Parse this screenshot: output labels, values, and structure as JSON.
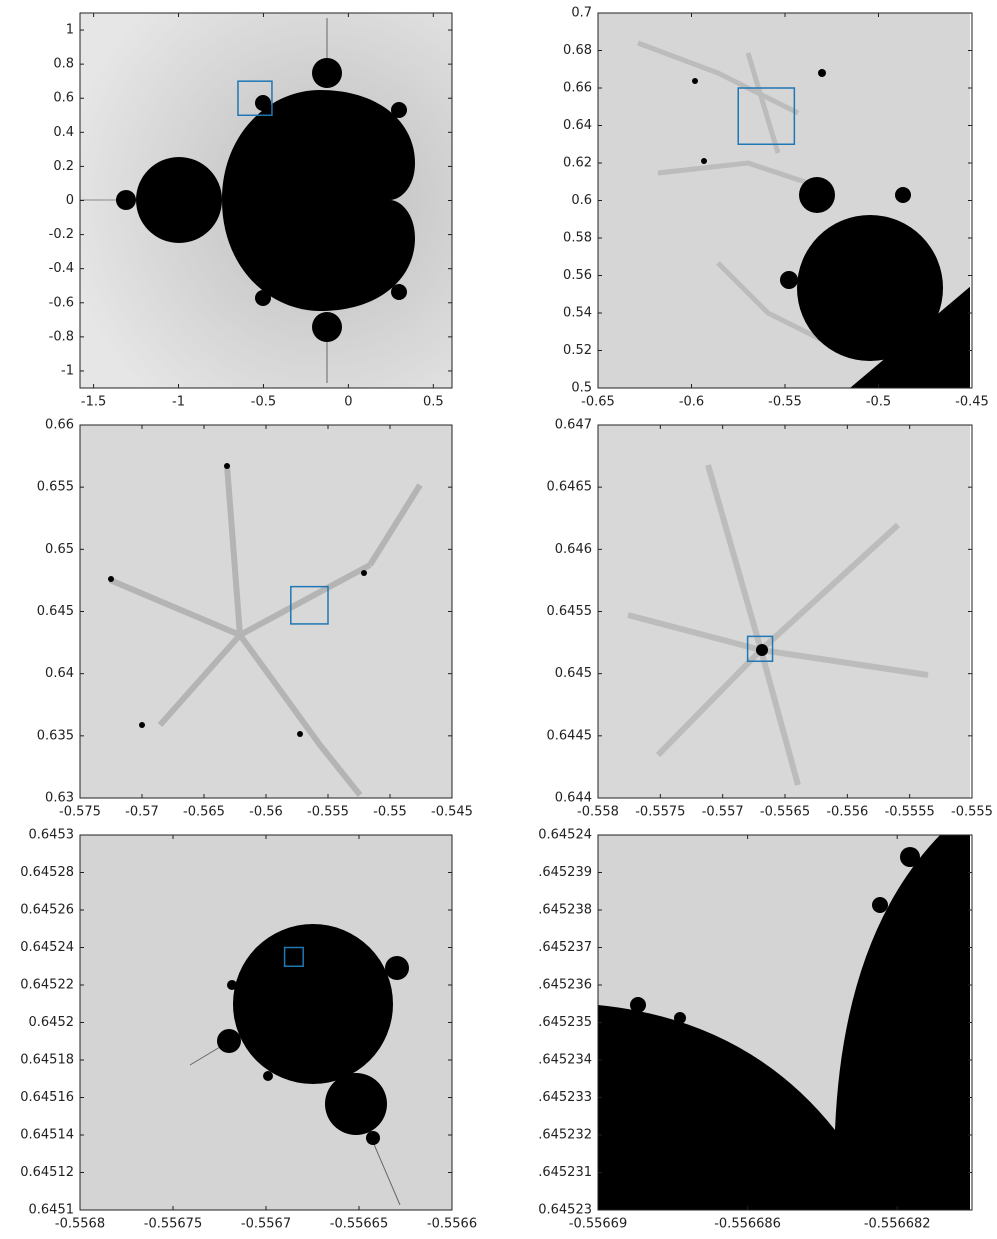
{
  "chart_data": [
    {
      "type": "image",
      "xlim": [
        -1.58,
        0.61
      ],
      "ylim": [
        -1.1,
        1.1
      ],
      "xticks": [
        -1.5,
        -1,
        -0.5,
        0,
        0.5
      ],
      "yticks": [
        -1,
        -0.8,
        -0.6,
        -0.4,
        -0.2,
        0,
        0.2,
        0.4,
        0.6,
        0.8,
        1
      ]
    },
    {
      "type": "image",
      "xlim": [
        -0.65,
        -0.45
      ],
      "ylim": [
        0.5,
        0.7
      ],
      "xticks": [
        -0.65,
        -0.6,
        -0.55,
        -0.5,
        -0.45
      ],
      "yticks": [
        0.5,
        0.52,
        0.54,
        0.56,
        0.58,
        0.6,
        0.62,
        0.64,
        0.66,
        0.68,
        0.7
      ]
    },
    {
      "type": "image",
      "xlim": [
        -0.575,
        -0.545
      ],
      "ylim": [
        0.63,
        0.66
      ],
      "xticks": [
        -0.575,
        -0.57,
        -0.565,
        -0.56,
        -0.555,
        -0.55,
        -0.545
      ],
      "yticks": [
        0.63,
        0.635,
        0.64,
        0.645,
        0.65,
        0.655,
        0.66
      ]
    },
    {
      "type": "image",
      "xlim": [
        -0.558,
        -0.555
      ],
      "ylim": [
        0.644,
        0.647
      ],
      "xticks": [
        -0.558,
        -0.5575,
        -0.557,
        -0.5565,
        -0.556,
        -0.5555,
        -0.555
      ],
      "yticks": [
        0.644,
        0.6445,
        0.645,
        0.6455,
        0.646,
        0.6465,
        0.647
      ]
    },
    {
      "type": "image",
      "xlim": [
        -0.5568,
        -0.5566
      ],
      "ylim": [
        0.6451,
        0.6453
      ],
      "xticks": [
        -0.5568,
        -0.55675,
        -0.5567,
        -0.55665,
        -0.5566
      ],
      "yticks": [
        0.6451,
        0.64512,
        0.64514,
        0.64516,
        0.64518,
        0.6452,
        0.64522,
        0.64524,
        0.64526,
        0.64528,
        0.6453
      ]
    },
    {
      "type": "image",
      "xlim": [
        -0.55669,
        -0.55668
      ],
      "ylim": [
        0.64523,
        0.64524
      ],
      "xticks": [
        -0.55669,
        -0.556686,
        -0.556682
      ],
      "yticks": [
        0.64523,
        {
          "value": 0.645231,
          "label": ".645231"
        },
        {
          "value": 0.645232,
          "label": ".645232"
        },
        {
          "value": 0.645233,
          "label": ".645233"
        },
        {
          "value": 0.645234,
          "label": ".645234"
        },
        {
          "value": 0.645235,
          "label": ".645235"
        },
        {
          "value": 0.645236,
          "label": ".645236"
        },
        {
          "value": 0.645237,
          "label": ".645237"
        },
        {
          "value": 0.645238,
          "label": ".645238"
        },
        {
          "value": 0.645239,
          "label": ".645239"
        },
        0.64524
      ]
    }
  ]
}
